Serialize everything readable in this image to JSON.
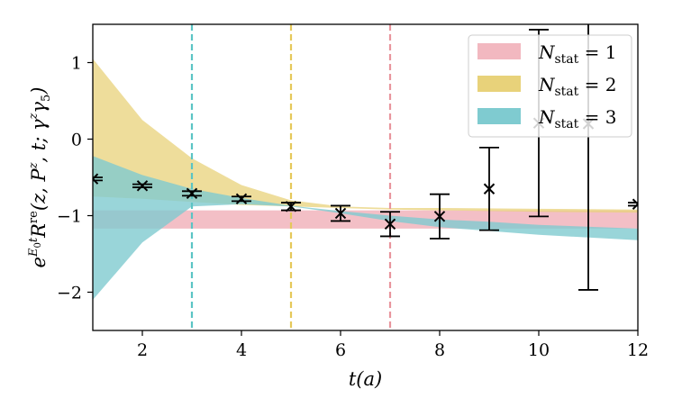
{
  "chart_data": {
    "type": "line",
    "title": "",
    "xlabel": "t(a)",
    "ylabel": "e^{E_0 t} R^{re}(z, P^z, t; γ^z γ_5)",
    "ylabel_parts": {
      "base": "e",
      "sup": "E",
      "supsub": "0",
      "supt": "t",
      "main": "R",
      "mainsup": "re",
      "args": "(z, P",
      "argsup": "z",
      "args2": ", t; γ",
      "gsup": "z",
      "gamma": "γ",
      "gsub": "5",
      "close": ")"
    },
    "xlim": [
      1,
      12
    ],
    "ylim": [
      -2.5,
      1.5
    ],
    "xticks": [
      2,
      4,
      6,
      8,
      10,
      12
    ],
    "xtick_labels": [
      "2",
      "4",
      "6",
      "8",
      "10",
      "12"
    ],
    "yticks": [
      1,
      0,
      -1,
      -2
    ],
    "ytick_labels": [
      "1",
      "0",
      "−1",
      "−2"
    ],
    "grid": false,
    "legend_position": "top-right",
    "legend_parts": {
      "N": "N",
      "sub": "stat"
    },
    "bands": [
      {
        "name": "N_stat = 1",
        "legend_value": " = 1",
        "color": "#f2b8c0",
        "opacity": 0.9,
        "x": [
          1,
          12
        ],
        "lower": [
          -1.17,
          -1.17
        ],
        "upper": [
          -0.93,
          -0.93
        ]
      },
      {
        "name": "N_stat = 2",
        "legend_value": " = 2",
        "color": "#e8d27a",
        "opacity": 0.75,
        "x": [
          1,
          2,
          3,
          4,
          5,
          6,
          7,
          8,
          10,
          12
        ],
        "lower": [
          -0.75,
          -0.78,
          -0.82,
          -0.86,
          -0.88,
          -0.9,
          -0.92,
          -0.93,
          -0.95,
          -0.96
        ],
        "upper": [
          1.05,
          0.25,
          -0.25,
          -0.6,
          -0.8,
          -0.88,
          -0.9,
          -0.9,
          -0.91,
          -0.92
        ]
      },
      {
        "name": "N_stat = 3",
        "legend_value": " = 3",
        "color": "#7fcbd0",
        "opacity": 0.8,
        "x": [
          1,
          2,
          3,
          4,
          5,
          6,
          7,
          8,
          9,
          10,
          12
        ],
        "lower": [
          -2.1,
          -1.35,
          -0.88,
          -0.85,
          -0.88,
          -0.97,
          -1.07,
          -1.15,
          -1.2,
          -1.25,
          -1.32
        ],
        "upper": [
          -0.22,
          -0.47,
          -0.65,
          -0.77,
          -0.87,
          -0.94,
          -1.0,
          -1.05,
          -1.08,
          -1.12,
          -1.17
        ]
      }
    ],
    "vlines": [
      {
        "x": 3,
        "color": "#5bc4c4"
      },
      {
        "x": 5,
        "color": "#e5c85a"
      },
      {
        "x": 7,
        "color": "#e8959d"
      }
    ],
    "points": [
      {
        "x": 1,
        "y": -0.52,
        "err": 0.02
      },
      {
        "x": 2,
        "y": -0.61,
        "err": 0.02
      },
      {
        "x": 3,
        "y": -0.71,
        "err": 0.03
      },
      {
        "x": 4,
        "y": -0.78,
        "err": 0.03
      },
      {
        "x": 5,
        "y": -0.88,
        "err": 0.05
      },
      {
        "x": 6,
        "y": -0.97,
        "err": 0.1
      },
      {
        "x": 7,
        "y": -1.11,
        "err": 0.16
      },
      {
        "x": 8,
        "y": -1.01,
        "err": 0.29
      },
      {
        "x": 9,
        "y": -0.65,
        "err": 0.54
      },
      {
        "x": 10,
        "y": 0.21,
        "err": 1.22
      },
      {
        "x": 11,
        "y": 0.2,
        "err": 2.17
      },
      {
        "x": 12,
        "y": -0.85,
        "err": 0.02
      }
    ]
  }
}
